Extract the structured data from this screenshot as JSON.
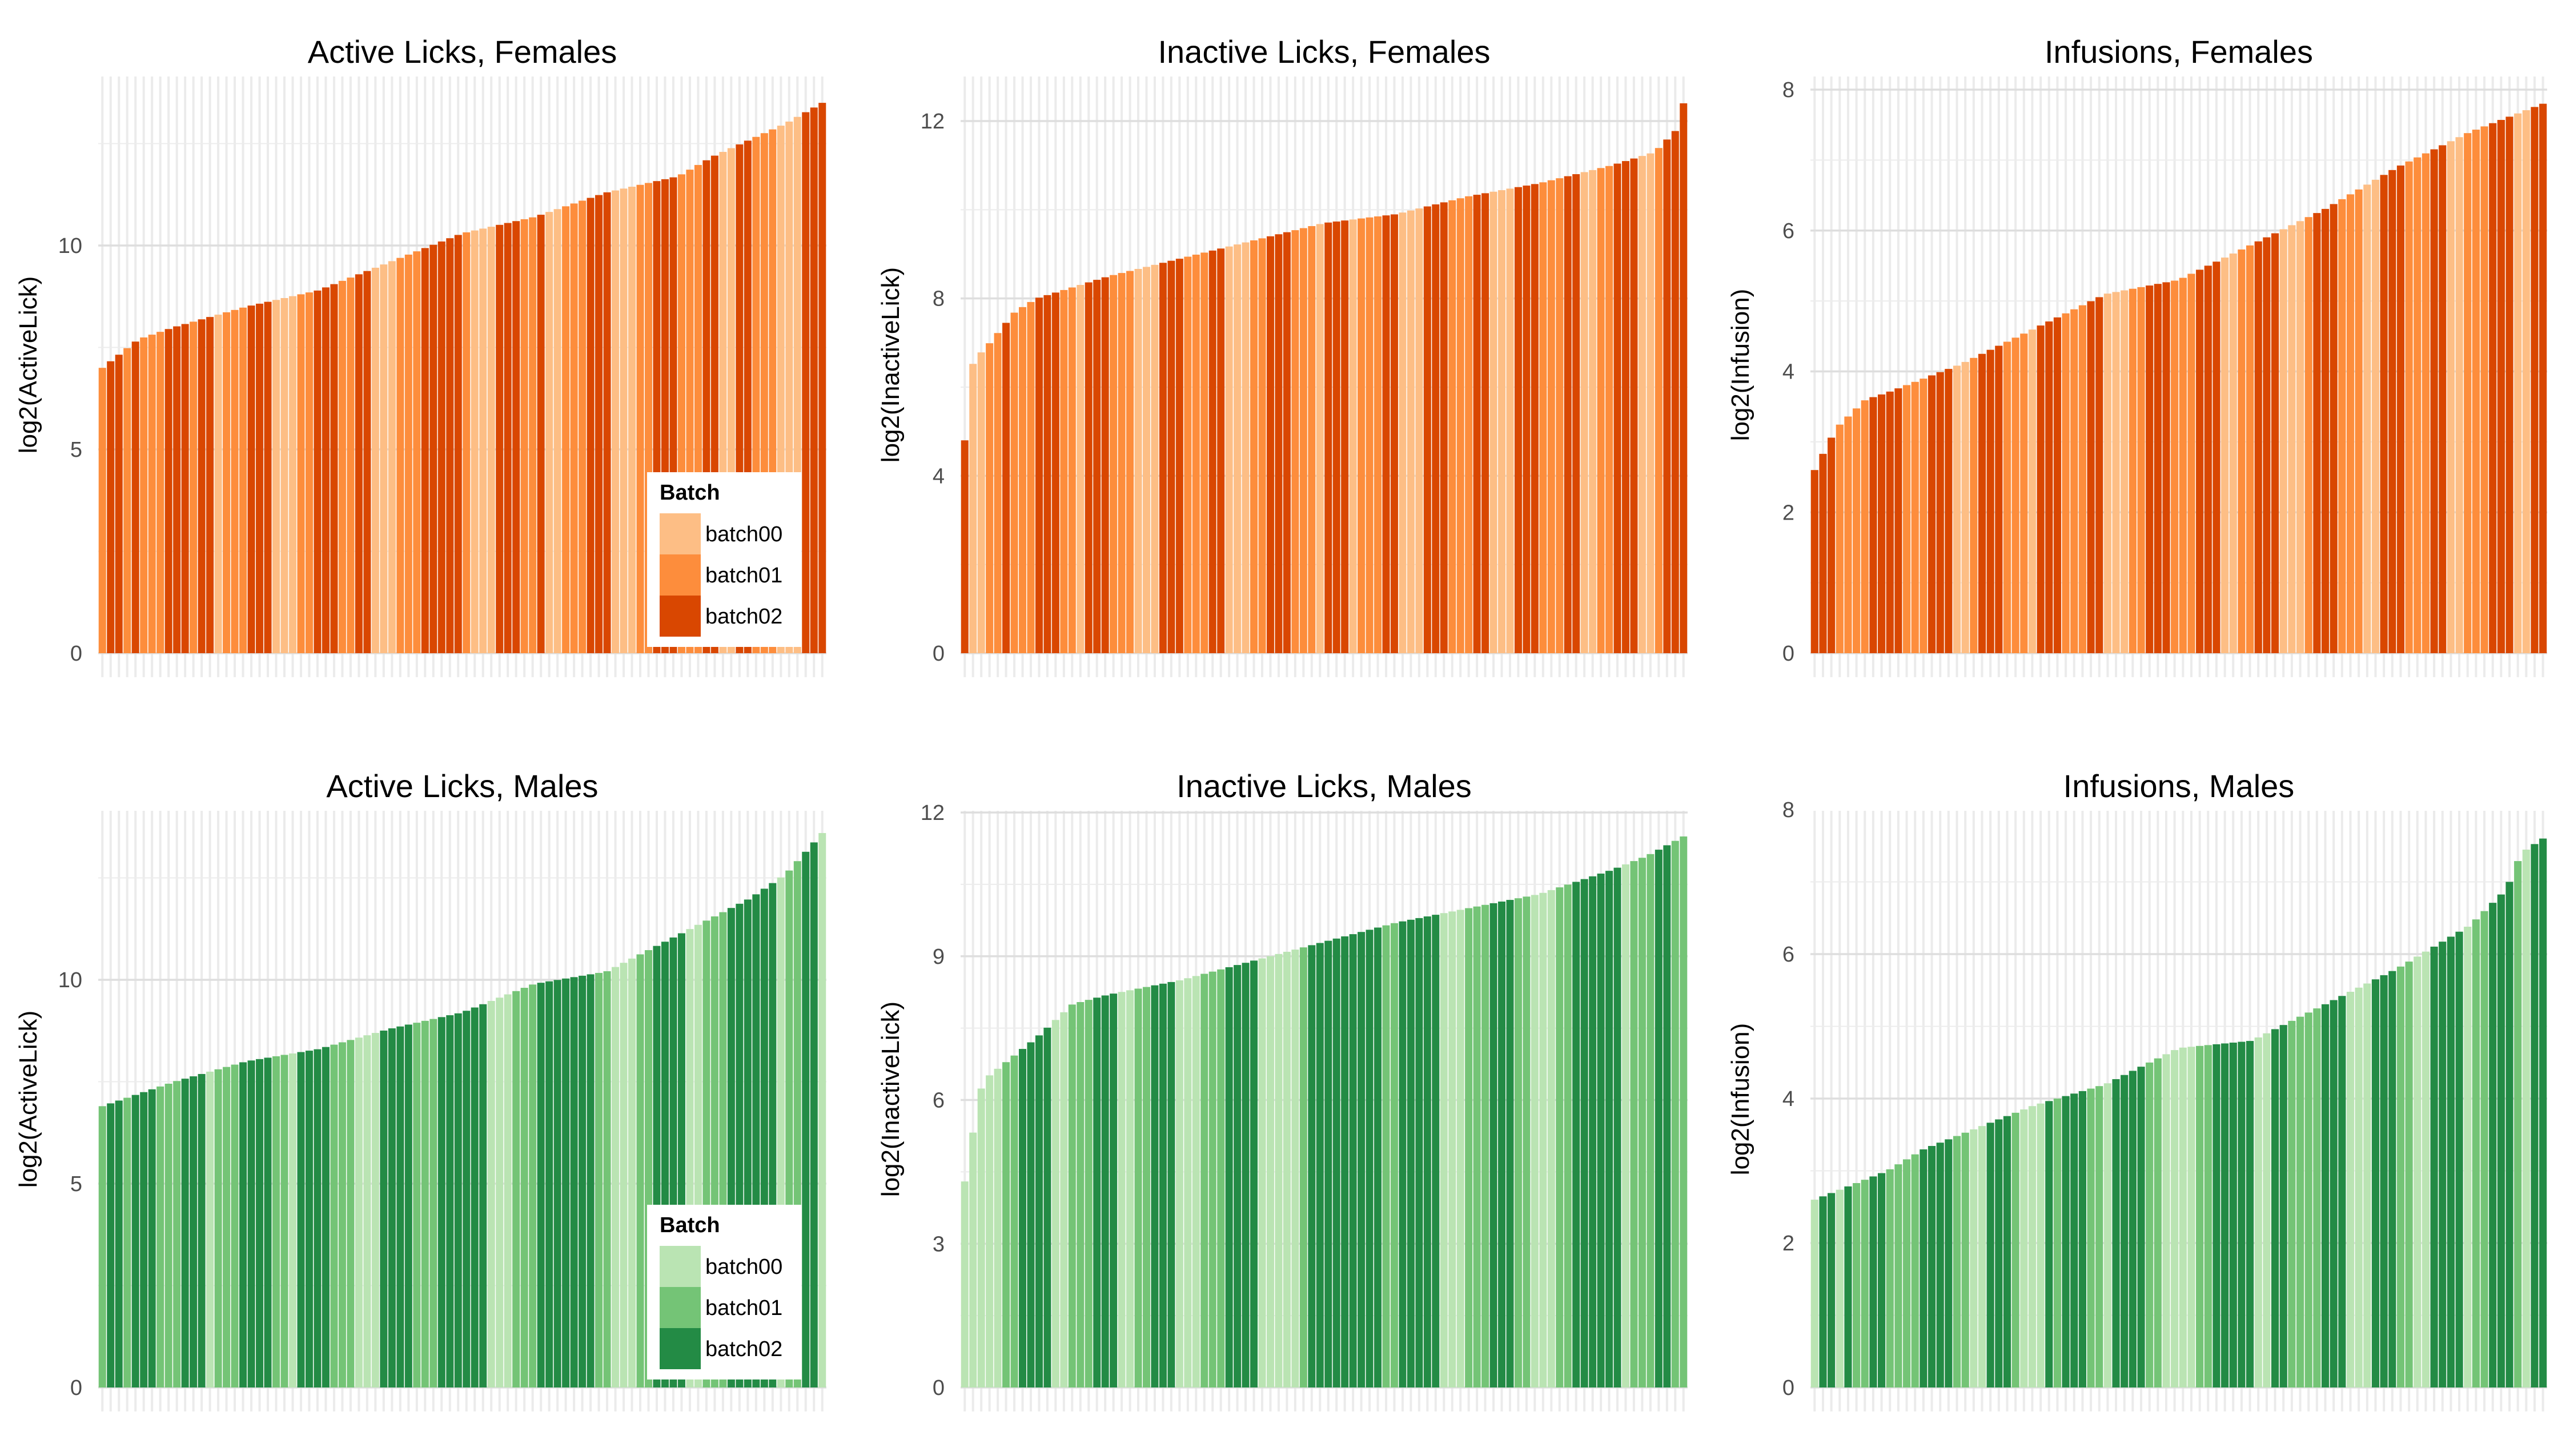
{
  "chart_data": [
    {
      "type": "bar",
      "title": "Active Licks, Females",
      "ylabel": "log2(ActiveLick)",
      "ylim": [
        0,
        14
      ],
      "yticks": [
        0,
        5,
        10
      ],
      "legend": {
        "title": "Batch",
        "placement": "bottom-right",
        "entries": [
          "batch00",
          "batch01",
          "batch02"
        ]
      },
      "series_colors": {
        "batch00": "#fdbe85",
        "batch01": "#fd8d3c",
        "batch02": "#d94701"
      },
      "grid": true,
      "anchors": [
        [
          0,
          7.0
        ],
        [
          0.05,
          7.7
        ],
        [
          0.1,
          8.0
        ],
        [
          0.2,
          8.5
        ],
        [
          0.3,
          8.9
        ],
        [
          0.4,
          9.6
        ],
        [
          0.5,
          10.3
        ],
        [
          0.6,
          10.7
        ],
        [
          0.7,
          11.3
        ],
        [
          0.8,
          11.7
        ],
        [
          0.85,
          12.2
        ],
        [
          0.9,
          12.6
        ],
        [
          0.95,
          13.0
        ],
        [
          1.0,
          13.5
        ]
      ],
      "batches": "1221211122212201112220001122211220001112222210002221120011122200011222111220022111000222"
    },
    {
      "type": "bar",
      "title": "Inactive Licks, Females",
      "ylabel": "log2(InactiveLick)",
      "ylim": [
        0,
        13
      ],
      "yticks": [
        0,
        4,
        8,
        12
      ],
      "legend": {
        "title": "Batch",
        "placement": "bottom-right",
        "entries": [
          "batch00",
          "batch01",
          "batch02"
        ]
      },
      "series_colors": {
        "batch00": "#fdbe85",
        "batch01": "#fd8d3c",
        "batch02": "#d94701"
      },
      "grid": true,
      "anchors": [
        [
          0,
          4.8
        ],
        [
          0.012,
          6.6
        ],
        [
          0.03,
          6.9
        ],
        [
          0.07,
          7.7
        ],
        [
          0.1,
          8.0
        ],
        [
          0.2,
          8.5
        ],
        [
          0.3,
          8.9
        ],
        [
          0.4,
          9.3
        ],
        [
          0.5,
          9.7
        ],
        [
          0.6,
          9.9
        ],
        [
          0.7,
          10.3
        ],
        [
          0.8,
          10.6
        ],
        [
          0.9,
          11.0
        ],
        [
          0.96,
          11.3
        ],
        [
          0.99,
          11.8
        ],
        [
          1.0,
          12.4
        ]
      ],
      "batches": "2001121112221102221110002221112200011222111022201112200022211122000222111220011222001222"
    },
    {
      "type": "bar",
      "title": "Infusions, Females",
      "ylabel": "log2(Infusion)",
      "ylim": [
        0,
        8.2
      ],
      "yticks": [
        0,
        2,
        4,
        6,
        8
      ],
      "legend": {
        "title": "Batch",
        "placement": "bottom-right",
        "entries": [
          "batch00",
          "batch01",
          "batch02"
        ]
      },
      "series_colors": {
        "batch00": "#fdbe85",
        "batch01": "#fd8d3c",
        "batch02": "#d94701"
      },
      "grid": true,
      "anchors": [
        [
          0,
          2.6
        ],
        [
          0.03,
          3.2
        ],
        [
          0.07,
          3.6
        ],
        [
          0.1,
          3.7
        ],
        [
          0.2,
          4.1
        ],
        [
          0.3,
          4.6
        ],
        [
          0.4,
          5.1
        ],
        [
          0.5,
          5.3
        ],
        [
          0.6,
          5.8
        ],
        [
          0.7,
          6.3
        ],
        [
          0.8,
          6.9
        ],
        [
          0.9,
          7.4
        ],
        [
          1.0,
          7.8
        ]
      ],
      "batches": "2221111222211122200122211102221112200011222111222001122200012221110022211122001112220022"
    },
    {
      "type": "bar",
      "title": "Active Licks, Males",
      "ylabel": "log2(ActiveLick)",
      "ylim": [
        0,
        14
      ],
      "yticks": [
        0,
        5,
        10
      ],
      "legend": {
        "title": "Batch",
        "placement": "bottom-right",
        "entries": [
          "batch00",
          "batch01",
          "batch02"
        ]
      },
      "series_colors": {
        "batch00": "#bae4b3",
        "batch01": "#74c476",
        "batch02": "#238b45"
      },
      "grid": true,
      "anchors": [
        [
          0,
          6.9
        ],
        [
          0.1,
          7.5
        ],
        [
          0.2,
          8.0
        ],
        [
          0.3,
          8.3
        ],
        [
          0.4,
          8.8
        ],
        [
          0.5,
          9.2
        ],
        [
          0.6,
          9.9
        ],
        [
          0.7,
          10.2
        ],
        [
          0.8,
          11.1
        ],
        [
          0.9,
          12.0
        ],
        [
          0.95,
          12.6
        ],
        [
          1.0,
          13.6
        ]
      ],
      "batches": "1221222111222011122221102222111000222211122222200011122222221100011222200111222222011220"
    },
    {
      "type": "bar",
      "title": "Inactive Licks, Males",
      "ylabel": "log2(InactiveLick)",
      "ylim": [
        0,
        12
      ],
      "yticks": [
        0,
        3,
        6,
        9,
        12
      ],
      "legend": {
        "title": "Batch",
        "placement": "bottom-right",
        "entries": [
          "batch00",
          "batch01",
          "batch02"
        ]
      },
      "series_colors": {
        "batch00": "#bae4b3",
        "batch01": "#74c476",
        "batch02": "#238b45"
      },
      "grid": true,
      "anchors": [
        [
          0,
          4.3
        ],
        [
          0.01,
          5.2
        ],
        [
          0.025,
          6.4
        ],
        [
          0.05,
          6.7
        ],
        [
          0.1,
          7.3
        ],
        [
          0.15,
          8.0
        ],
        [
          0.2,
          8.2
        ],
        [
          0.3,
          8.5
        ],
        [
          0.4,
          8.9
        ],
        [
          0.5,
          9.3
        ],
        [
          0.6,
          9.7
        ],
        [
          0.7,
          10.0
        ],
        [
          0.8,
          10.3
        ],
        [
          0.9,
          10.8
        ],
        [
          0.95,
          11.1
        ],
        [
          1.0,
          11.5
        ]
      ],
      "batches": "0000011222200111222001122200011122220000012222222221122222000111222110001122222201112211"
    },
    {
      "type": "bar",
      "title": "Infusions, Males",
      "ylabel": "log2(Infusion)",
      "ylim": [
        0,
        8.2
      ],
      "yticks": [
        0,
        2,
        4,
        6,
        8
      ],
      "legend": {
        "title": "Batch",
        "placement": "bottom-right",
        "entries": [
          "batch00",
          "batch01",
          "batch02"
        ]
      },
      "series_colors": {
        "batch00": "#bae4b3",
        "batch01": "#74c476",
        "batch02": "#238b45"
      },
      "grid": true,
      "anchors": [
        [
          0,
          2.6
        ],
        [
          0.05,
          2.8
        ],
        [
          0.1,
          3.0
        ],
        [
          0.15,
          3.3
        ],
        [
          0.2,
          3.5
        ],
        [
          0.3,
          3.9
        ],
        [
          0.4,
          4.2
        ],
        [
          0.5,
          4.7
        ],
        [
          0.6,
          4.8
        ],
        [
          0.7,
          5.3
        ],
        [
          0.8,
          5.8
        ],
        [
          0.9,
          6.4
        ],
        [
          0.95,
          6.9
        ],
        [
          0.97,
          7.4
        ],
        [
          1.0,
          7.6
        ]
      ],
      "batches": "0220211221111222211002221000212221102222110000112222200221111222000222110022220112221022"
    }
  ]
}
